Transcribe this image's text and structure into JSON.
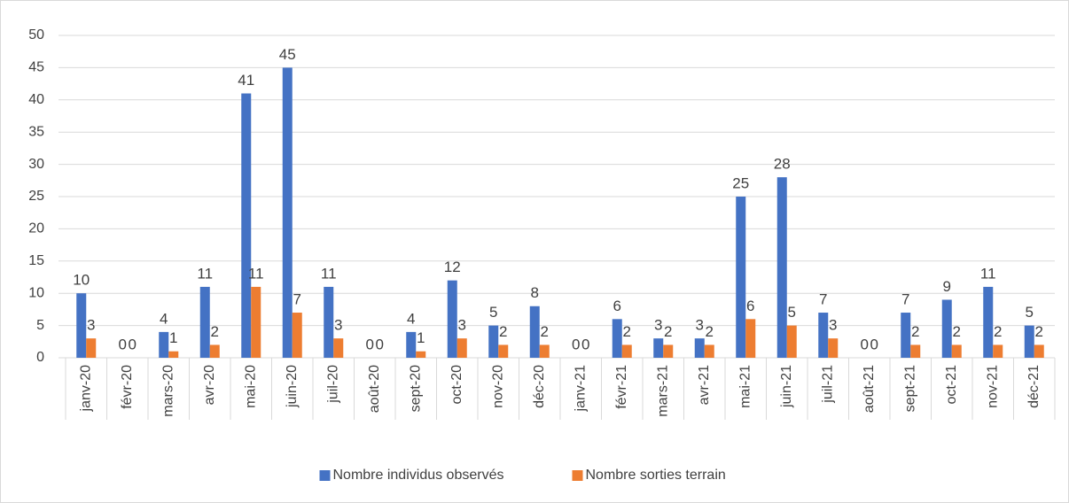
{
  "chart_data": {
    "type": "bar",
    "categories": [
      "janv-20",
      "févr-20",
      "mars-20",
      "avr-20",
      "mai-20",
      "juin-20",
      "juil-20",
      "août-20",
      "sept-20",
      "oct-20",
      "nov-20",
      "déc-20",
      "janv-21",
      "févr-21",
      "mars-21",
      "avr-21",
      "mai-21",
      "juin-21",
      "juil-21",
      "août-21",
      "sept-21",
      "oct-21",
      "nov-21",
      "déc-21"
    ],
    "series": [
      {
        "name": "Nombre individus observés",
        "color": "#4472c4",
        "values": [
          10,
          0,
          4,
          11,
          41,
          45,
          11,
          0,
          4,
          12,
          5,
          8,
          0,
          6,
          3,
          3,
          25,
          28,
          7,
          0,
          7,
          9,
          11,
          5
        ]
      },
      {
        "name": "Nombre sorties terrain",
        "color": "#ed7d31",
        "values": [
          3,
          0,
          1,
          2,
          11,
          7,
          3,
          0,
          1,
          3,
          2,
          2,
          0,
          2,
          2,
          2,
          6,
          5,
          3,
          0,
          2,
          2,
          2,
          2
        ]
      }
    ],
    "ylim": [
      0,
      50
    ],
    "yticks": [
      0,
      5,
      10,
      15,
      20,
      25,
      30,
      35,
      40,
      45,
      50
    ],
    "grid": true,
    "legend": "bottom"
  }
}
